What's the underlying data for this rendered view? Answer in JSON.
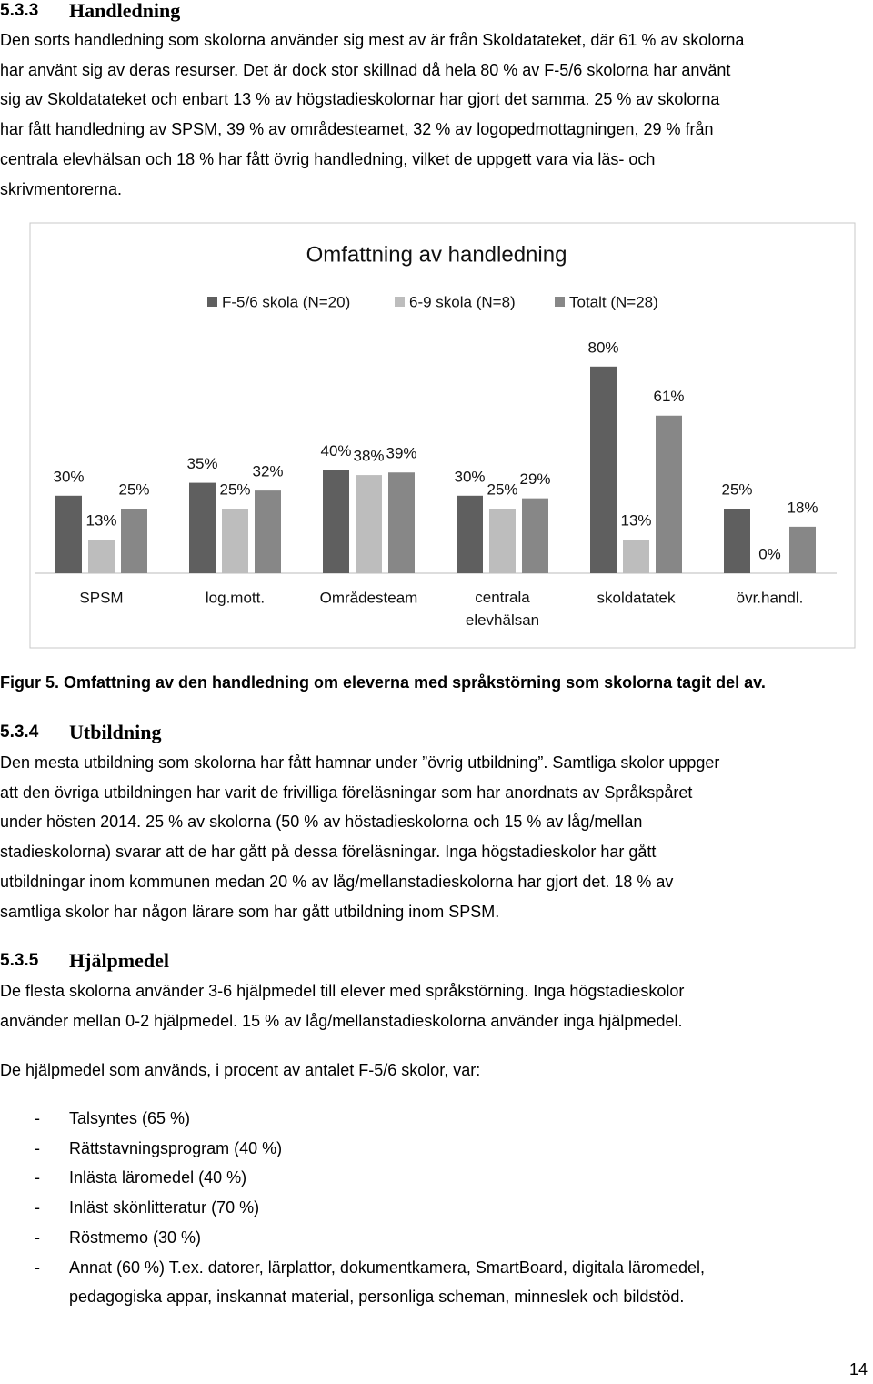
{
  "sections": [
    {
      "number": "5.3.3",
      "title": "Handledning",
      "paragraphs": [
        [
          "Den sorts handledning som skolorna använder sig mest av är från Skoldatateket, där 61 % av skolorna",
          "har använt sig av deras resurser. Det är dock stor skillnad då hela 80 % av F-5/6 skolorna har använt",
          "sig av Skoldatateket och enbart 13 % av högstadieskolornar har gjort det samma. 25 % av skolorna",
          "har fått handledning av SPSM, 39 % av områdesteamet, 32 % av logopedmottagningen, 29 % från",
          "centrala elevhälsan och 18 % har fått övrig handledning, vilket de uppgett vara via läs- och",
          "skrivmentorerna."
        ]
      ]
    },
    {
      "number": "5.3.4",
      "title": "Utbildning",
      "paragraphs": [
        [
          "Den mesta utbildning som skolorna har fått hamnar under ”övrig utbildning”. Samtliga skolor uppger",
          "att den övriga utbildningen har varit de frivilliga föreläsningar som har anordnats av Språkspåret",
          "under hösten 2014. 25 % av skolorna (50 % av höstadieskolorna och 15 % av låg/mellan",
          "stadieskolorna) svarar att de har gått på dessa föreläsningar. Inga högstadieskolor har gått",
          "utbildningar inom kommunen medan 20 % av låg/mellanstadieskolorna har gjort det. 18 % av",
          "samtliga skolor har någon lärare som har gått utbildning inom SPSM."
        ]
      ]
    },
    {
      "number": "5.3.5",
      "title": "Hjälpmedel",
      "paragraphs": [
        [
          "De flesta skolorna använder 3-6 hjälpmedel till elever med språkstörning. Inga högstadieskolor",
          "använder mellan 0-2 hjälpmedel. 15 % av låg/mellanstadieskolorna använder inga hjälpmedel."
        ],
        [
          "De hjälpmedel som används, i procent av antalet F-5/6 skolor, var:"
        ]
      ],
      "list": [
        [
          "Talsyntes (65 %)"
        ],
        [
          "Rättstavningsprogram (40 %)"
        ],
        [
          "Inlästa läromedel (40 %)"
        ],
        [
          "Inläst skönlitteratur (70 %)"
        ],
        [
          "Röstmemo (30 %)"
        ],
        [
          "Annat (60 %) T.ex. datorer, lärplattor, dokumentkamera, SmartBoard, digitala läromedel,",
          "pedagogiska appar, inskannat material, personliga scheman, minneslek och bildstöd."
        ]
      ]
    }
  ],
  "figure_caption": "Figur 5. Omfattning av den handledning om eleverna med språkstörning som skolorna tagit del av.",
  "page_number": "14",
  "chart_data": {
    "type": "bar",
    "title": "Omfattning av handledning",
    "legend": "top",
    "categories": [
      "SPSM",
      "log.mott.",
      "Områdesteam",
      "centrala elevhälsan",
      "skoldatatek",
      "övr.handl."
    ],
    "series": [
      {
        "name": "F-5/6 skola (N=20)",
        "color": "#5f5f5f",
        "values": [
          30,
          35,
          40,
          30,
          80,
          25
        ],
        "value_labels": [
          "30%",
          "35%",
          "40%",
          "30%",
          "80%",
          "25%"
        ]
      },
      {
        "name": "6-9 skola (N=8)",
        "color": "#bdbdbd",
        "values": [
          13,
          25,
          38,
          25,
          13,
          0
        ],
        "value_labels": [
          "13%",
          "25%",
          "38%",
          "25%",
          "13%",
          "0%"
        ]
      },
      {
        "name": "Totalt (N=28)",
        "color": "#878787",
        "values": [
          25,
          32,
          39,
          29,
          61,
          18
        ],
        "value_labels": [
          "25%",
          "32%",
          "39%",
          "29%",
          "61%",
          "18%"
        ]
      }
    ]
  }
}
